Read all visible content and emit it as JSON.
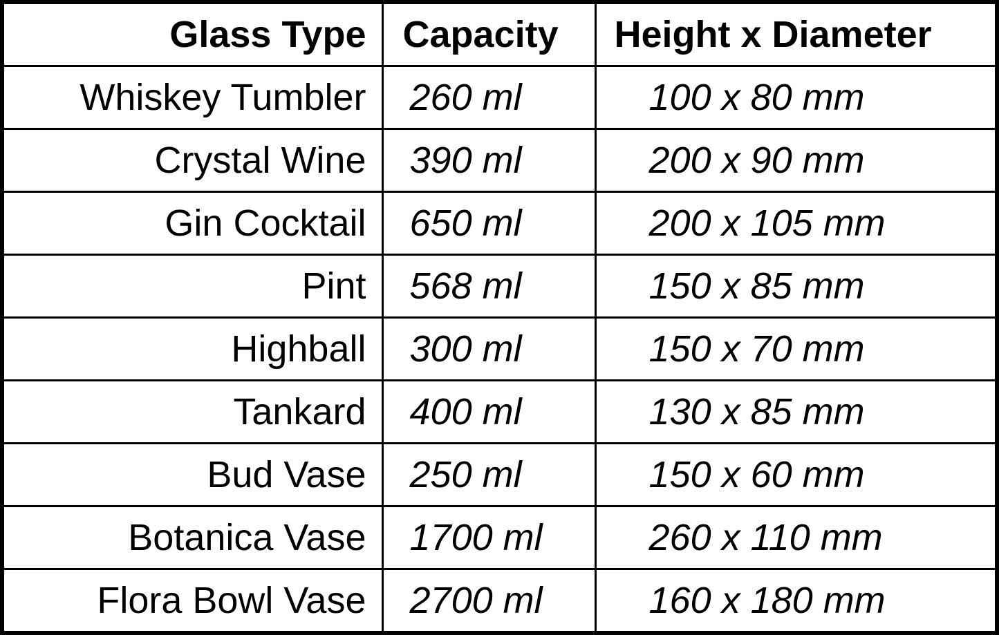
{
  "headers": [
    "Glass Type",
    "Capacity",
    "Height x Diameter"
  ],
  "rows": [
    [
      "Whiskey Tumbler",
      "260 ml",
      "100 x 80 mm"
    ],
    [
      "Crystal Wine",
      "390 ml",
      "200 x 90 mm"
    ],
    [
      "Gin Cocktail",
      "650 ml",
      "200 x 105 mm"
    ],
    [
      "Pint",
      "568 ml",
      "150 x 85 mm"
    ],
    [
      "Highball",
      "300 ml",
      "150 x 70 mm"
    ],
    [
      "Tankard",
      "400 ml",
      "130 x 85 mm"
    ],
    [
      "Bud Vase",
      "250 ml",
      "150 x 60 mm"
    ],
    [
      "Botanica Vase",
      "1700 ml",
      "260 x 110 mm"
    ],
    [
      "Flora Bowl Vase",
      "2700 ml",
      "160 x 180 mm"
    ]
  ]
}
